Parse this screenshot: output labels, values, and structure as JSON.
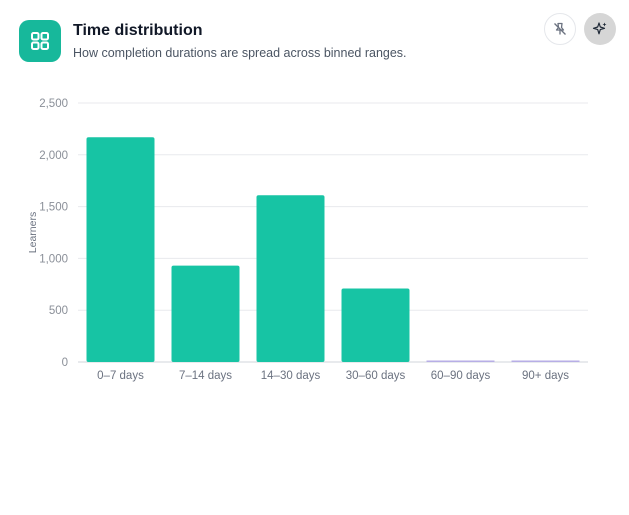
{
  "header": {
    "title": "Time distribution",
    "subtitle": "How completion durations are spread across binned ranges.",
    "app_icon": "grid-icon",
    "actions": [
      {
        "name": "pin-off-icon"
      },
      {
        "name": "sparkle-icon"
      }
    ]
  },
  "colors": {
    "accent": "#17b89b",
    "bar": "#17c4a4",
    "empty_bar": "#b7aee6",
    "grid": "#e8eaed"
  },
  "chart_data": {
    "type": "bar",
    "categories": [
      "0–7 days",
      "7–14 days",
      "14–30 days",
      "30–60 days",
      "60–90 days",
      "90+ days"
    ],
    "values": [
      2170,
      930,
      1610,
      710,
      0,
      0
    ],
    "y_ticks": [
      "0",
      "500",
      "1,000",
      "1,500",
      "2,000",
      "2,500"
    ],
    "y_tick_values": [
      0,
      500,
      1000,
      1500,
      2000,
      2500
    ],
    "ylabel": "Learners",
    "xlabel": "",
    "ylim": [
      0,
      2500
    ],
    "grid": true,
    "legend": "none"
  }
}
